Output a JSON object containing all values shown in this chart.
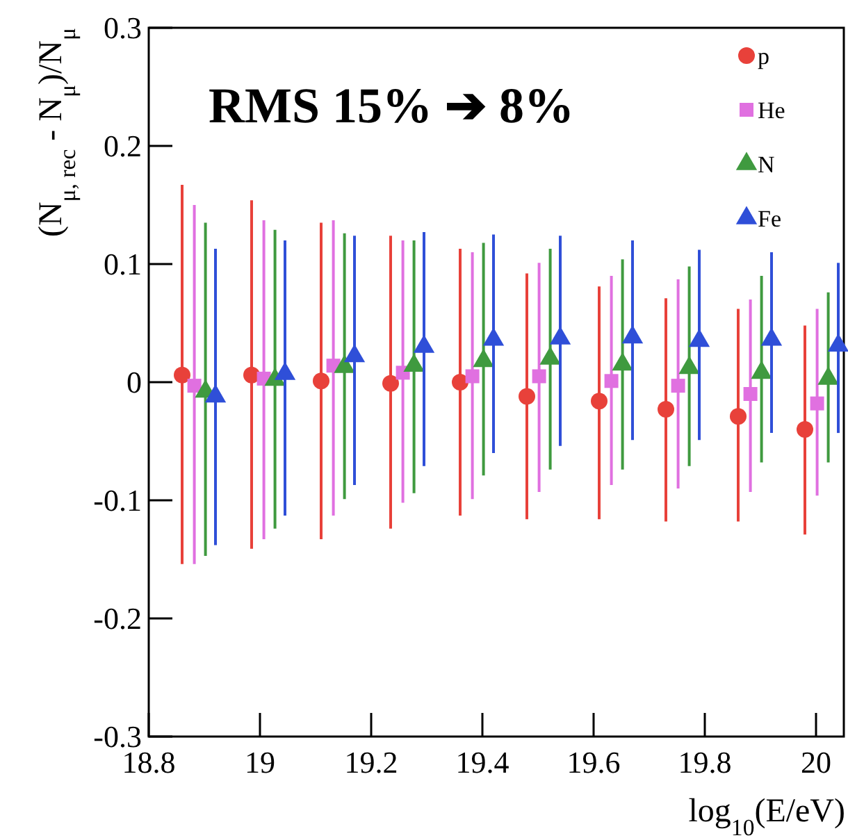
{
  "chart_data": {
    "type": "scatter",
    "xlabel": "log$_{10}$(E/eV)",
    "ylabel": "(N$_{μ, rec}$ - N$_{μ}$)/N$_{μ}$",
    "annotations": [
      "RMS 15% ➔ 8%"
    ],
    "xlim": [
      18.8,
      20.05
    ],
    "ylim": [
      -0.3,
      0.3
    ],
    "xticks": [
      18.8,
      19,
      19.2,
      19.4,
      19.6,
      19.8,
      20
    ],
    "yticks": [
      -0.3,
      -0.2,
      -0.1,
      0,
      0.1,
      0.2,
      0.3
    ],
    "legend": "top right",
    "grid": false,
    "series": [
      {
        "name": "p",
        "color": "#e8413a",
        "marker": "circle",
        "x": [
          18.86,
          18.985,
          19.11,
          19.235,
          19.36,
          19.48,
          19.61,
          19.73,
          19.86,
          19.98
        ],
        "values": [
          0.006,
          0.006,
          0.001,
          -0.001,
          0,
          -0.012,
          -0.016,
          -0.023,
          -0.029,
          -0.04
        ],
        "errors": [
          [
            -0.154,
            0.167
          ],
          [
            -0.141,
            0.154
          ],
          [
            -0.133,
            0.135
          ],
          [
            -0.124,
            0.124
          ],
          [
            -0.113,
            0.113
          ],
          [
            -0.116,
            0.092
          ],
          [
            -0.116,
            0.081
          ],
          [
            -0.118,
            0.071
          ],
          [
            -0.118,
            0.062
          ],
          [
            -0.129,
            0.048
          ]
        ]
      },
      {
        "name": "He",
        "color": "#e070e0",
        "marker": "square",
        "x": [
          18.882,
          19.007,
          19.132,
          19.257,
          19.382,
          19.502,
          19.632,
          19.752,
          19.882,
          20.002
        ],
        "values": [
          -0.003,
          0.003,
          0.014,
          0.008,
          0.005,
          0.005,
          0.001,
          -0.003,
          -0.01,
          -0.018
        ],
        "errors": [
          [
            -0.154,
            0.15
          ],
          [
            -0.133,
            0.137
          ],
          [
            -0.113,
            0.137
          ],
          [
            -0.102,
            0.12
          ],
          [
            -0.099,
            0.11
          ],
          [
            -0.093,
            0.101
          ],
          [
            -0.087,
            0.09
          ],
          [
            -0.09,
            0.087
          ],
          [
            -0.093,
            0.07
          ],
          [
            -0.096,
            0.062
          ]
        ]
      },
      {
        "name": "N",
        "color": "#3f9a3f",
        "marker": "triangle",
        "x": [
          18.902,
          19.027,
          19.152,
          19.277,
          19.402,
          19.522,
          19.652,
          19.772,
          19.902,
          20.022
        ],
        "values": [
          -0.008,
          0.002,
          0.013,
          0.014,
          0.018,
          0.02,
          0.015,
          0.012,
          0.008,
          0.003
        ],
        "errors": [
          [
            -0.147,
            0.135
          ],
          [
            -0.124,
            0.129
          ],
          [
            -0.099,
            0.126
          ],
          [
            -0.094,
            0.12
          ],
          [
            -0.079,
            0.118
          ],
          [
            -0.074,
            0.113
          ],
          [
            -0.074,
            0.104
          ],
          [
            -0.071,
            0.098
          ],
          [
            -0.068,
            0.09
          ],
          [
            -0.068,
            0.076
          ]
        ]
      },
      {
        "name": "Fe",
        "color": "#2f4fd8",
        "marker": "triangle",
        "x": [
          18.92,
          19.045,
          19.17,
          19.295,
          19.42,
          19.54,
          19.67,
          19.79,
          19.92,
          20.04
        ],
        "values": [
          -0.012,
          0.007,
          0.022,
          0.03,
          0.036,
          0.037,
          0.038,
          0.035,
          0.036,
          0.031
        ],
        "errors": [
          [
            -0.138,
            0.113
          ],
          [
            -0.113,
            0.12
          ],
          [
            -0.087,
            0.124
          ],
          [
            -0.071,
            0.127
          ],
          [
            -0.06,
            0.125
          ],
          [
            -0.054,
            0.124
          ],
          [
            -0.049,
            0.12
          ],
          [
            -0.049,
            0.112
          ],
          [
            -0.043,
            0.11
          ],
          [
            -0.043,
            0.101
          ]
        ]
      }
    ]
  }
}
